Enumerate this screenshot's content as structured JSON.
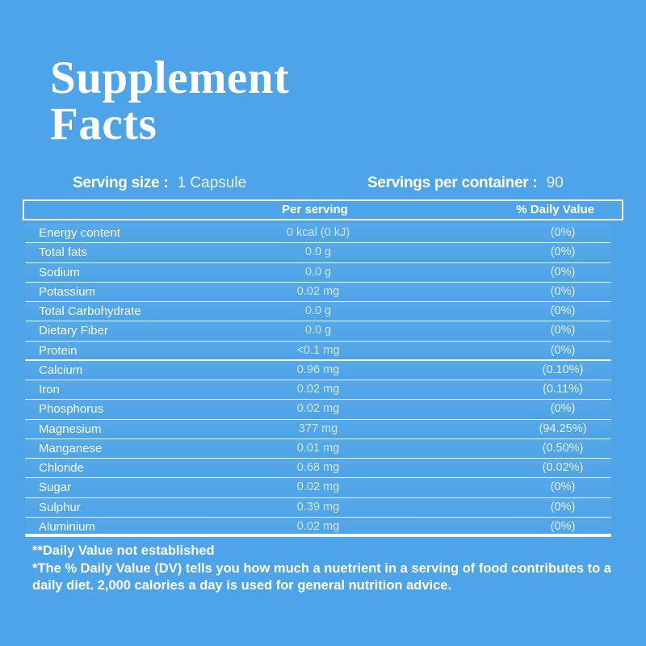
{
  "title": {
    "line1": "Supplement",
    "line2": "Facts"
  },
  "serving": {
    "size_label": "Serving size :",
    "size_value": "1 Capsule",
    "container_label": "Servings per container :",
    "container_value": "90"
  },
  "table": {
    "col_per_serving": "Per serving",
    "col_daily_value": "% Daily Value",
    "rows": [
      {
        "name": "Energy content",
        "amount": "0 kcal (0 kJ)",
        "dv": "(0%)"
      },
      {
        "name": "Total fats",
        "amount": "0.0 g",
        "dv": "(0%)"
      },
      {
        "name": "Sodium",
        "amount": "0.0 g",
        "dv": "(0%)"
      },
      {
        "name": "Potassium",
        "amount": "0.02 mg",
        "dv": "(0%)"
      },
      {
        "name": "Total Carbohydrate",
        "amount": "0.0 g",
        "dv": "(0%)"
      },
      {
        "name": "Dietary Fiber",
        "amount": "0.0 g",
        "dv": "(0%)"
      },
      {
        "name": "Protein",
        "amount": "<0.1 mg",
        "dv": "(0%)",
        "thick_after": true
      },
      {
        "name": "Calcium",
        "amount": "0.96 mg",
        "dv": "(0.10%)"
      },
      {
        "name": "Iron",
        "amount": "0.02 mg",
        "dv": "(0.11%)"
      },
      {
        "name": "Phosphorus",
        "amount": "0.02 mg",
        "dv": "(0%)"
      },
      {
        "name": "Magnesium",
        "amount": "377 mg",
        "dv": "(94.25%)"
      },
      {
        "name": "Manganese",
        "amount": "0.01 mg",
        "dv": "(0.50%)"
      },
      {
        "name": "Chloride",
        "amount": "0.68 mg",
        "dv": "(0.02%)"
      },
      {
        "name": "Sugar",
        "amount": "0.02 mg",
        "dv": "(0%)"
      },
      {
        "name": "Sulphur",
        "amount": "0.39 mg",
        "dv": "(0%)"
      },
      {
        "name": "Aluminium",
        "amount": "0.02 mg",
        "dv": "(0%)"
      }
    ]
  },
  "footnotes": {
    "line1": "**Daily Value not established",
    "line2": "*The % Daily Value (DV) tells you how much a nuetrient in a serving of food contributes to a daily diet. 2,000 calories a day is used for general nutrition advice."
  },
  "colors": {
    "background": "#4DA4E8",
    "text": "#FFFFFF"
  }
}
